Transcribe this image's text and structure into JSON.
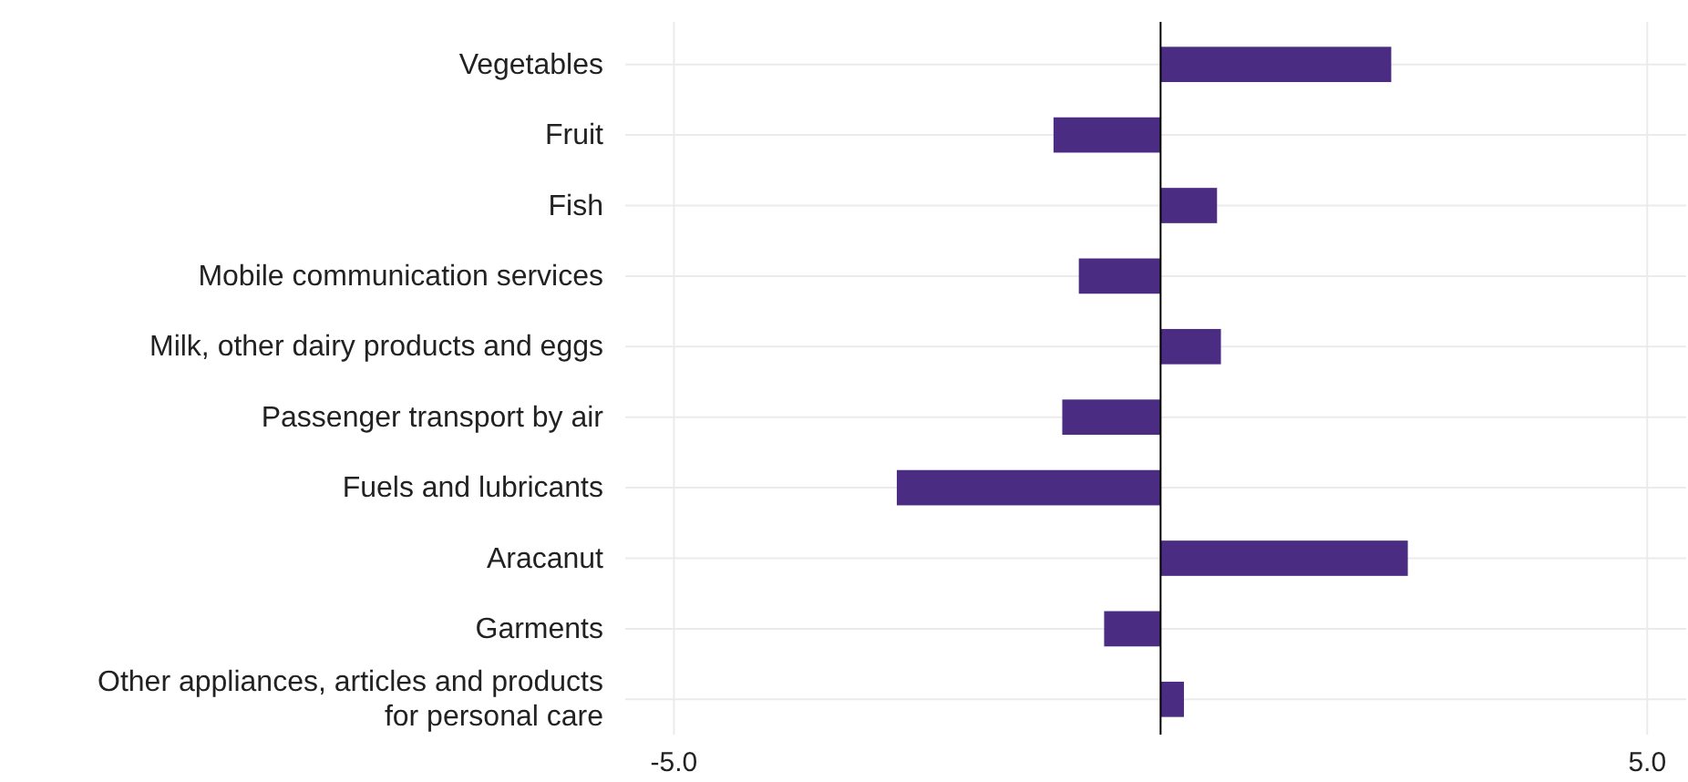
{
  "chart_data": {
    "type": "bar",
    "orientation": "horizontal",
    "categories": [
      "Vegetables",
      "Fruit",
      "Fish",
      "Mobile communication services",
      "Milk, other dairy products and eggs",
      "Passenger transport by air",
      "Fuels and lubricants",
      "Aracanut",
      "Garments",
      "Other appliances, articles and products\nfor personal care"
    ],
    "values": [
      2.37,
      -1.1,
      0.58,
      -0.84,
      0.62,
      -1.01,
      -2.71,
      2.54,
      -0.58,
      0.24
    ],
    "color": "#4b2c83",
    "xlim": [
      -5.5,
      5.4
    ],
    "xticks": [
      {
        "value": -5,
        "label": "-5.0"
      },
      {
        "value": 5,
        "label": "5.0"
      }
    ],
    "ref_lines": [
      {
        "axis": "x",
        "value": 0,
        "color": "#000000"
      }
    ],
    "grid": true
  }
}
